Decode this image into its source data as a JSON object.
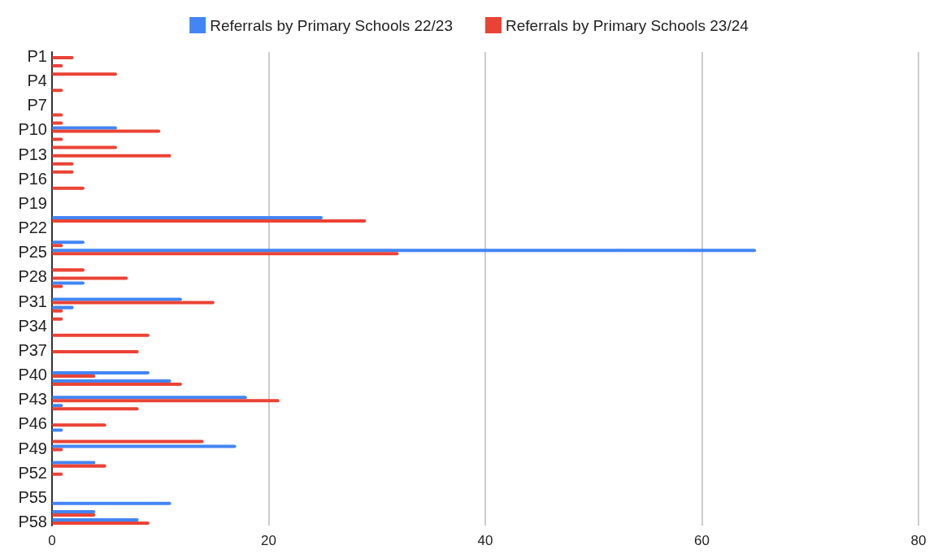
{
  "chart_data": {
    "type": "bar",
    "orientation": "horizontal",
    "categories": [
      "P1",
      null,
      null,
      "P4",
      null,
      null,
      "P7",
      null,
      null,
      "P10",
      null,
      null,
      "P13",
      null,
      null,
      "P16",
      null,
      null,
      "P19",
      null,
      null,
      "P22",
      null,
      null,
      "P25",
      null,
      null,
      "P28",
      null,
      null,
      "P31",
      null,
      null,
      "P34",
      null,
      null,
      "P37",
      null,
      null,
      "P40",
      null,
      null,
      "P43",
      null,
      null,
      "P46",
      null,
      null,
      "P49",
      null,
      null,
      "P52",
      null,
      null,
      "P55",
      null,
      null,
      "P58"
    ],
    "series": [
      {
        "name": "Referrals by Primary Schools 22/23",
        "color": "#4285f4",
        "values": [
          0,
          0,
          0,
          0,
          0,
          0,
          0,
          0,
          0,
          6,
          0,
          0,
          0,
          0,
          0,
          0,
          0,
          0,
          0,
          0,
          25,
          0,
          0,
          3,
          65,
          0,
          0,
          0,
          3,
          0,
          12,
          2,
          0,
          0,
          0,
          0,
          0,
          0,
          0,
          9,
          11,
          0,
          18,
          1,
          0,
          0,
          1,
          0,
          17,
          0,
          4,
          0,
          0,
          0,
          0,
          11,
          4,
          8
        ]
      },
      {
        "name": "Referrals by Primary Schools 23/24",
        "color": "#ea4335",
        "values": [
          2,
          1,
          6,
          0,
          1,
          0,
          0,
          1,
          1,
          10,
          1,
          6,
          11,
          2,
          2,
          0,
          3,
          0,
          0,
          0,
          29,
          0,
          0,
          1,
          32,
          0,
          3,
          7,
          1,
          0,
          15,
          1,
          1,
          0,
          9,
          0,
          8,
          0,
          0,
          4,
          12,
          0,
          21,
          8,
          0,
          5,
          0,
          14,
          1,
          0,
          5,
          1,
          0,
          0,
          0,
          0,
          4,
          9
        ]
      }
    ],
    "xlim": [
      0,
      80
    ],
    "xticks": [
      0,
      20,
      40,
      60,
      80
    ],
    "grid": "x",
    "legend": "top"
  }
}
